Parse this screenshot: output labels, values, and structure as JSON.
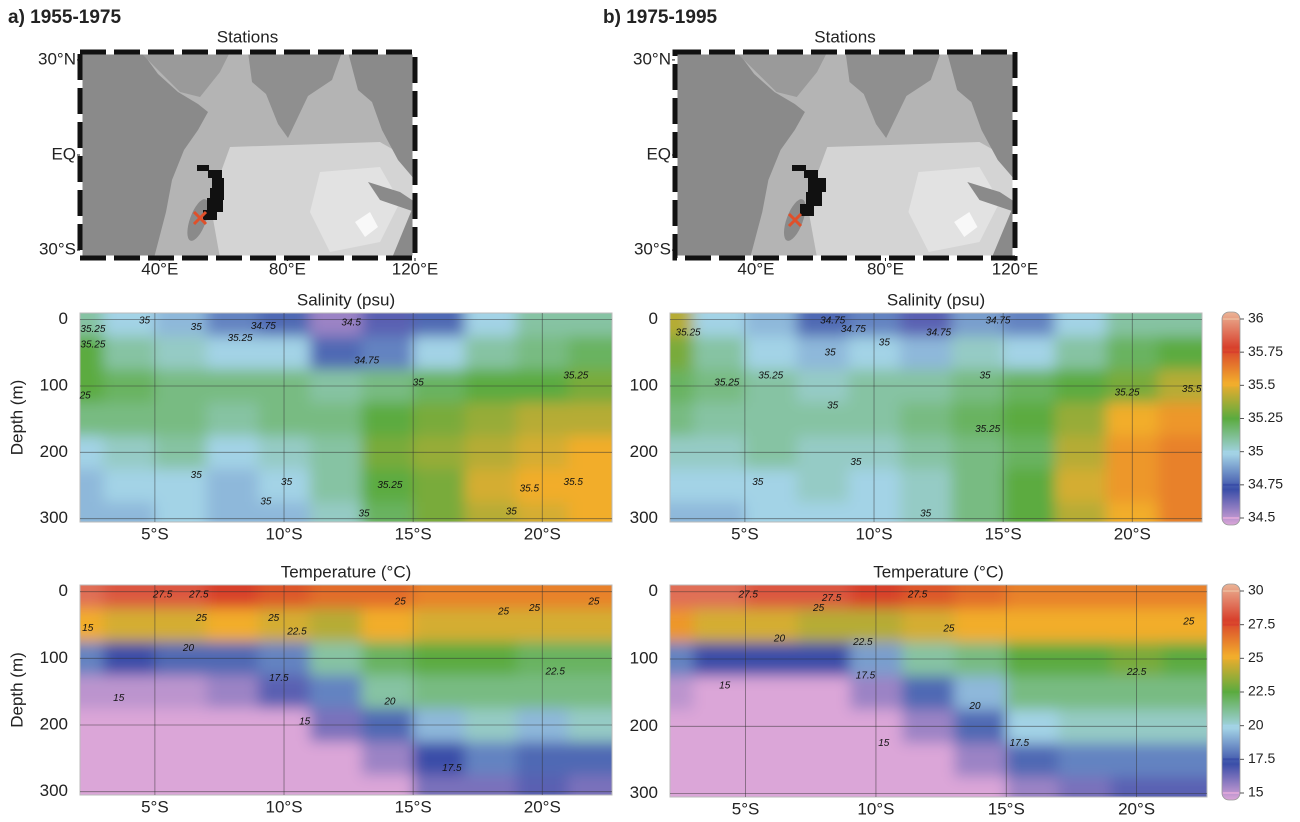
{
  "chart_data": [
    {
      "type": "map",
      "panel_label": "a) 1955-1975",
      "title": "Stations",
      "xlim": [
        15,
        120
      ],
      "ylim": [
        -32.5,
        32.5
      ],
      "xticks": [
        {
          "value": 40,
          "label": "40°E"
        },
        {
          "value": 80,
          "label": "80°E"
        },
        {
          "value": 120,
          "label": "120°E"
        }
      ],
      "yticks": [
        {
          "value": 30,
          "label": "30°N"
        },
        {
          "value": 0,
          "label": "EQ"
        },
        {
          "value": -30,
          "label": "30°S"
        }
      ]
    },
    {
      "type": "map",
      "panel_label": "b) 1975-1995",
      "title": "Stations",
      "xlim": [
        15,
        120
      ],
      "ylim": [
        -32.5,
        32.5
      ],
      "xticks": [
        {
          "value": 40,
          "label": "40°E"
        },
        {
          "value": 80,
          "label": "80°E"
        },
        {
          "value": 120,
          "label": "120°E"
        }
      ],
      "yticks": [
        {
          "value": 30,
          "label": "30°N"
        },
        {
          "value": 0,
          "label": "EQ"
        },
        {
          "value": -30,
          "label": "30°S"
        }
      ]
    },
    {
      "type": "contour",
      "title": "Salinity (psu)",
      "ylabel": "Depth (m)",
      "xlim": [
        -2.1,
        -22.7
      ],
      "ylim": [
        -10,
        305
      ],
      "y_inverted": true,
      "grid": true,
      "xticks": [
        {
          "value": -5,
          "label": "5°S"
        },
        {
          "value": -10,
          "label": "10°S"
        },
        {
          "value": -15,
          "label": "15°S"
        },
        {
          "value": -20,
          "label": "20°S"
        }
      ],
      "yticks": [
        0,
        100,
        200,
        300
      ],
      "field": {
        "x": [
          -2,
          -4,
          -6,
          -8,
          -10,
          -12,
          -14,
          -16,
          -18,
          -20,
          -22
        ],
        "y": [
          0,
          50,
          100,
          150,
          200,
          250,
          300
        ],
        "z": [
          [
            35.1,
            35.0,
            34.95,
            34.85,
            34.8,
            34.6,
            34.7,
            34.8,
            35.0,
            35.1,
            35.1
          ],
          [
            35.25,
            35.1,
            35.05,
            35.0,
            35.0,
            34.8,
            34.85,
            35.0,
            35.1,
            35.15,
            35.2
          ],
          [
            35.25,
            35.2,
            35.15,
            35.15,
            35.15,
            35.1,
            35.15,
            35.2,
            35.25,
            35.25,
            35.3
          ],
          [
            35.15,
            35.15,
            35.15,
            35.1,
            35.15,
            35.15,
            35.25,
            35.3,
            35.35,
            35.4,
            35.4
          ],
          [
            35.0,
            35.05,
            35.1,
            35.0,
            35.05,
            35.1,
            35.3,
            35.35,
            35.4,
            35.45,
            35.5
          ],
          [
            34.95,
            35.0,
            35.0,
            34.95,
            35.0,
            35.1,
            35.25,
            35.3,
            35.45,
            35.5,
            35.5
          ],
          [
            34.95,
            34.95,
            35.0,
            34.95,
            34.95,
            35.05,
            35.2,
            35.3,
            35.4,
            35.45,
            35.5
          ]
        ]
      },
      "annotations": [
        {
          "text": "35.25",
          "x": -2.6,
          "y": 15
        },
        {
          "text": "35.25",
          "x": -2.6,
          "y": 38
        },
        {
          "text": "25",
          "x": -2.3,
          "y": 115
        },
        {
          "text": "35",
          "x": -4.6,
          "y": 2
        },
        {
          "text": "35",
          "x": -6.6,
          "y": 12
        },
        {
          "text": "35.25",
          "x": -8.3,
          "y": 28
        },
        {
          "text": "34.75",
          "x": -9.2,
          "y": 10
        },
        {
          "text": "34.5",
          "x": -12.6,
          "y": 5
        },
        {
          "text": "34.75",
          "x": -13.2,
          "y": 62
        },
        {
          "text": "35",
          "x": -15.2,
          "y": 95
        },
        {
          "text": "35.25",
          "x": -21.3,
          "y": 85
        },
        {
          "text": "35",
          "x": -6.6,
          "y": 235
        },
        {
          "text": "35",
          "x": -9.3,
          "y": 275
        },
        {
          "text": "35",
          "x": -10.1,
          "y": 245
        },
        {
          "text": "35.25",
          "x": -14.1,
          "y": 250
        },
        {
          "text": "35",
          "x": -13.1,
          "y": 293
        },
        {
          "text": "35",
          "x": -18.8,
          "y": 290
        },
        {
          "text": "35.5",
          "x": -19.5,
          "y": 255
        },
        {
          "text": "35.5",
          "x": -21.2,
          "y": 245
        }
      ]
    },
    {
      "type": "contour",
      "title": "Salinity (psu)",
      "xlim": [
        -2.1,
        -22.7
      ],
      "ylim": [
        -10,
        305
      ],
      "y_inverted": true,
      "grid": true,
      "xticks": [
        {
          "value": -5,
          "label": "5°S"
        },
        {
          "value": -10,
          "label": "10°S"
        },
        {
          "value": -15,
          "label": "15°S"
        },
        {
          "value": -20,
          "label": "20°S"
        }
      ],
      "yticks": [
        0,
        100,
        200,
        300
      ],
      "field": {
        "x": [
          -2,
          -4,
          -6,
          -8,
          -10,
          -12,
          -14,
          -16,
          -18,
          -20,
          -22
        ],
        "y": [
          0,
          50,
          100,
          150,
          200,
          250,
          300
        ],
        "z": [
          [
            35.4,
            35.0,
            34.95,
            34.8,
            34.85,
            34.7,
            34.9,
            34.85,
            35.0,
            35.1,
            35.1
          ],
          [
            35.3,
            35.1,
            35.0,
            34.95,
            35.0,
            34.95,
            35.05,
            35.0,
            35.1,
            35.2,
            35.25
          ],
          [
            35.2,
            35.15,
            35.1,
            35.05,
            35.1,
            35.1,
            35.15,
            35.2,
            35.25,
            35.3,
            35.4
          ],
          [
            35.15,
            35.1,
            35.1,
            35.1,
            35.1,
            35.15,
            35.2,
            35.25,
            35.35,
            35.5,
            35.55
          ],
          [
            35.05,
            35.05,
            35.1,
            35.05,
            35.05,
            35.1,
            35.15,
            35.2,
            35.4,
            35.55,
            35.6
          ],
          [
            35.0,
            35.0,
            35.0,
            35.05,
            35.0,
            35.05,
            35.15,
            35.25,
            35.45,
            35.55,
            35.6
          ],
          [
            34.95,
            34.95,
            35.0,
            35.0,
            35.0,
            35.05,
            35.15,
            35.25,
            35.4,
            35.5,
            35.6
          ]
        ]
      },
      "annotations": [
        {
          "text": "35.25",
          "x": -2.8,
          "y": 20
        },
        {
          "text": "35.25",
          "x": -4.3,
          "y": 95
        },
        {
          "text": "35.25",
          "x": -6.0,
          "y": 85
        },
        {
          "text": "34.75",
          "x": -8.4,
          "y": 2
        },
        {
          "text": "34.75",
          "x": -9.2,
          "y": 15
        },
        {
          "text": "35",
          "x": -8.3,
          "y": 50
        },
        {
          "text": "35",
          "x": -10.4,
          "y": 35
        },
        {
          "text": "34.75",
          "x": -12.5,
          "y": 20
        },
        {
          "text": "34.75",
          "x": -14.8,
          "y": 2
        },
        {
          "text": "35",
          "x": -14.3,
          "y": 85
        },
        {
          "text": "35",
          "x": -8.4,
          "y": 130
        },
        {
          "text": "35.25",
          "x": -14.4,
          "y": 165
        },
        {
          "text": "35.25",
          "x": -19.8,
          "y": 110
        },
        {
          "text": "35.5",
          "x": -22.3,
          "y": 105
        },
        {
          "text": "35",
          "x": -5.5,
          "y": 245
        },
        {
          "text": "35",
          "x": -9.3,
          "y": 215
        },
        {
          "text": "35",
          "x": -12.0,
          "y": 293
        }
      ],
      "colorbar": {
        "ticks": [
          34.5,
          34.75,
          35,
          35.25,
          35.5,
          35.75,
          36
        ],
        "colors": [
          "#dba6d8",
          "#3a4ea8",
          "#a3d3e6",
          "#5bab3f",
          "#f2ad2c",
          "#d8402c",
          "#ebb496"
        ]
      }
    },
    {
      "type": "contour",
      "title": "Temperature (°C)",
      "ylabel": "Depth (m)",
      "xlim": [
        -2.1,
        -22.7
      ],
      "ylim": [
        -10,
        305
      ],
      "y_inverted": true,
      "grid": true,
      "xticks": [
        {
          "value": -5,
          "label": "5°S"
        },
        {
          "value": -10,
          "label": "10°S"
        },
        {
          "value": -15,
          "label": "15°S"
        },
        {
          "value": -20,
          "label": "20°S"
        }
      ],
      "yticks": [
        0,
        100,
        200,
        300
      ],
      "field": {
        "x": [
          -2,
          -4,
          -6,
          -8,
          -10,
          -12,
          -14,
          -16,
          -18,
          -20,
          -22
        ],
        "y": [
          0,
          50,
          100,
          150,
          200,
          250,
          300
        ],
        "z": [
          [
            28.5,
            28,
            28,
            27.5,
            27,
            26.5,
            26.5,
            26,
            26,
            26,
            26
          ],
          [
            25,
            24.5,
            24.5,
            25,
            24.5,
            24,
            25,
            24.5,
            24.5,
            24.5,
            24.5
          ],
          [
            18.5,
            17.5,
            18,
            18,
            18.5,
            21,
            22,
            22.5,
            22.5,
            22,
            22
          ],
          [
            15.5,
            15.5,
            15.5,
            16,
            17,
            18.5,
            21,
            21.5,
            21.5,
            21.5,
            21.5
          ],
          [
            14.5,
            15,
            15,
            15,
            15,
            16.5,
            18,
            19.5,
            20.5,
            19.5,
            20.5
          ],
          [
            14.5,
            14.5,
            14.5,
            14.5,
            14.5,
            15,
            16,
            17.5,
            18.5,
            18,
            18
          ],
          [
            14.5,
            14.5,
            14.5,
            14.5,
            14.5,
            14.5,
            15,
            16.5,
            16.5,
            17,
            16.5
          ]
        ]
      },
      "annotations": [
        {
          "text": "15",
          "x": -2.4,
          "y": 55
        },
        {
          "text": "27.5",
          "x": -5.3,
          "y": 5
        },
        {
          "text": "27.5",
          "x": -6.7,
          "y": 5
        },
        {
          "text": "25",
          "x": -6.8,
          "y": 40
        },
        {
          "text": "25",
          "x": -9.6,
          "y": 40
        },
        {
          "text": "22.5",
          "x": -10.5,
          "y": 60
        },
        {
          "text": "20",
          "x": -6.3,
          "y": 85
        },
        {
          "text": "17.5",
          "x": -9.8,
          "y": 130
        },
        {
          "text": "15",
          "x": -3.6,
          "y": 160
        },
        {
          "text": "15",
          "x": -10.8,
          "y": 195
        },
        {
          "text": "20",
          "x": -14.1,
          "y": 165
        },
        {
          "text": "17.5",
          "x": -16.5,
          "y": 265
        },
        {
          "text": "25",
          "x": -14.5,
          "y": 15
        },
        {
          "text": "25",
          "x": -18.5,
          "y": 30
        },
        {
          "text": "25",
          "x": -19.7,
          "y": 25
        },
        {
          "text": "25",
          "x": -22.0,
          "y": 15
        },
        {
          "text": "22.5",
          "x": -20.5,
          "y": 120
        }
      ]
    },
    {
      "type": "contour",
      "title": "Temperature (°C)",
      "xlim": [
        -2.1,
        -22.7
      ],
      "ylim": [
        -10,
        305
      ],
      "y_inverted": true,
      "grid": true,
      "xticks": [
        {
          "value": -5,
          "label": "5°S"
        },
        {
          "value": -10,
          "label": "10°S"
        },
        {
          "value": -15,
          "label": "15°S"
        },
        {
          "value": -20,
          "label": "20°S"
        }
      ],
      "yticks": [
        0,
        100,
        200,
        300
      ],
      "field": {
        "x": [
          -2,
          -4,
          -6,
          -8,
          -10,
          -12,
          -14,
          -16,
          -18,
          -20,
          -22
        ],
        "y": [
          0,
          50,
          100,
          150,
          200,
          250,
          300
        ],
        "z": [
          [
            28.5,
            28.5,
            28,
            28,
            27.5,
            27,
            26.5,
            26,
            26,
            26,
            26
          ],
          [
            25.5,
            24.5,
            24.5,
            24,
            24,
            24.5,
            25,
            25,
            25,
            25,
            25
          ],
          [
            18.5,
            17.5,
            17.5,
            17.5,
            19,
            21,
            21.5,
            22.5,
            22.5,
            23,
            22.5
          ],
          [
            15.5,
            15,
            15,
            15,
            16,
            18,
            19.5,
            21.5,
            21.5,
            21.5,
            21.5
          ],
          [
            14.5,
            14.5,
            14.5,
            14.5,
            15,
            16,
            18,
            20,
            20.5,
            20.5,
            20.5
          ],
          [
            14.5,
            14.5,
            14.5,
            14.5,
            14.5,
            15,
            16,
            18,
            18.5,
            18.5,
            18.5
          ],
          [
            14.5,
            14.5,
            14.5,
            14.5,
            14.5,
            14.5,
            15,
            16,
            16.5,
            17,
            17
          ]
        ]
      },
      "annotations": [
        {
          "text": "27.5",
          "x": -5.1,
          "y": 5
        },
        {
          "text": "25",
          "x": -7.8,
          "y": 25
        },
        {
          "text": "27.5",
          "x": -8.3,
          "y": 10
        },
        {
          "text": "27.5",
          "x": -11.6,
          "y": 5
        },
        {
          "text": "20",
          "x": -6.3,
          "y": 70
        },
        {
          "text": "22.5",
          "x": -9.5,
          "y": 75
        },
        {
          "text": "17.5",
          "x": -9.6,
          "y": 125
        },
        {
          "text": "15",
          "x": -4.2,
          "y": 140
        },
        {
          "text": "15",
          "x": -10.3,
          "y": 225
        },
        {
          "text": "25",
          "x": -12.8,
          "y": 55
        },
        {
          "text": "20",
          "x": -13.8,
          "y": 170
        },
        {
          "text": "17.5",
          "x": -15.5,
          "y": 225
        },
        {
          "text": "22.5",
          "x": -20.0,
          "y": 120
        },
        {
          "text": "25",
          "x": -22.0,
          "y": 45
        }
      ],
      "colorbar": {
        "ticks": [
          15,
          17.5,
          20,
          22.5,
          25,
          27.5,
          30
        ],
        "colors": [
          "#dba6d8",
          "#3a4ea8",
          "#a3d3e6",
          "#5bab3f",
          "#f2ad2c",
          "#d8402c",
          "#ebb496"
        ]
      }
    }
  ]
}
